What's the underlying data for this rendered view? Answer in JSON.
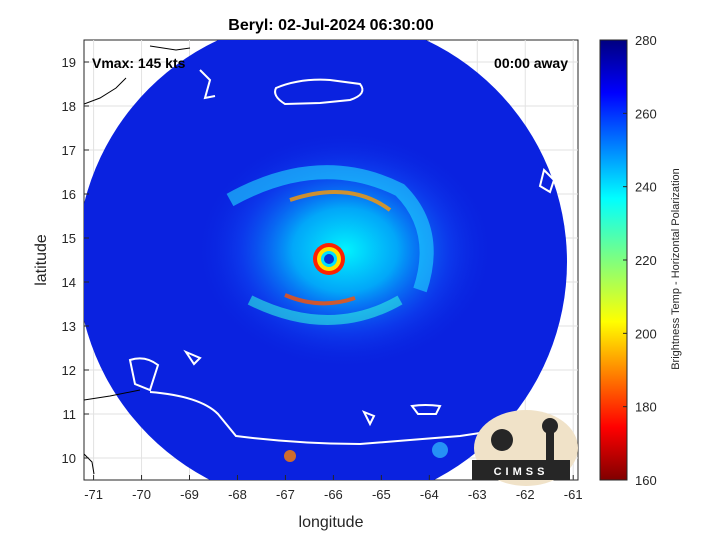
{
  "chart_data": {
    "type": "heatmap",
    "title": "Beryl: 02-Jul-2024 06:30:00",
    "xlabel": "longitude",
    "ylabel": "latitude",
    "xlim": [
      -71.2,
      -60.9
    ],
    "ylim": [
      9.5,
      19.5
    ],
    "xticks": [
      -71,
      -70,
      -69,
      -68,
      -67,
      -66,
      -65,
      -64,
      -63,
      -62,
      -61
    ],
    "yticks": [
      10,
      11,
      12,
      13,
      14,
      15,
      16,
      17,
      18,
      19
    ],
    "grid": true,
    "overlay_left": "Vmax: 145 kts",
    "overlay_right": "00:00 away",
    "storm_center": {
      "lon": -66.1,
      "lat": 14.45
    },
    "colorbar": {
      "label": "Brightness Temp - Horizontal Polarization",
      "range": [
        160,
        280
      ],
      "ticks": [
        160,
        180,
        200,
        220,
        240,
        260,
        280
      ],
      "colormap": "jet"
    },
    "logo_text": "CIMSS"
  },
  "colors": {
    "background": "#0a22e0",
    "coastline": "#ffffff",
    "outer_coastline": "#000000"
  }
}
